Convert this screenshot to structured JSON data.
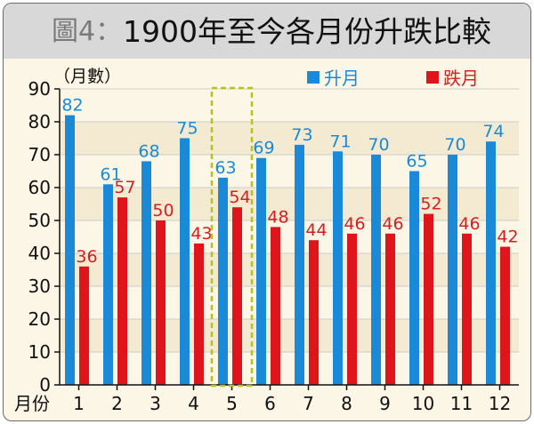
{
  "title": {
    "figure": "圖4：",
    "text": "1900年至今各月份升跌比較"
  },
  "chart_data": {
    "type": "bar",
    "ylabel": "（月數）",
    "xlabel": "月份",
    "categories": [
      "1",
      "2",
      "3",
      "4",
      "5",
      "6",
      "7",
      "8",
      "9",
      "10",
      "11",
      "12"
    ],
    "ylim": [
      0,
      90
    ],
    "yticks": [
      0,
      10,
      20,
      30,
      40,
      50,
      60,
      70,
      80,
      90
    ],
    "legend_position": "top-right",
    "highlight_category": "5",
    "series": [
      {
        "name": "升月",
        "color": "#1a8ad8",
        "label_color": "#1a8ad8",
        "values": [
          82,
          61,
          68,
          75,
          63,
          69,
          73,
          71,
          70,
          65,
          70,
          74
        ]
      },
      {
        "name": "跌月",
        "color": "#e0151b",
        "label_color": "#d42020",
        "values": [
          36,
          57,
          50,
          43,
          54,
          48,
          44,
          46,
          46,
          52,
          46,
          42
        ]
      }
    ]
  }
}
